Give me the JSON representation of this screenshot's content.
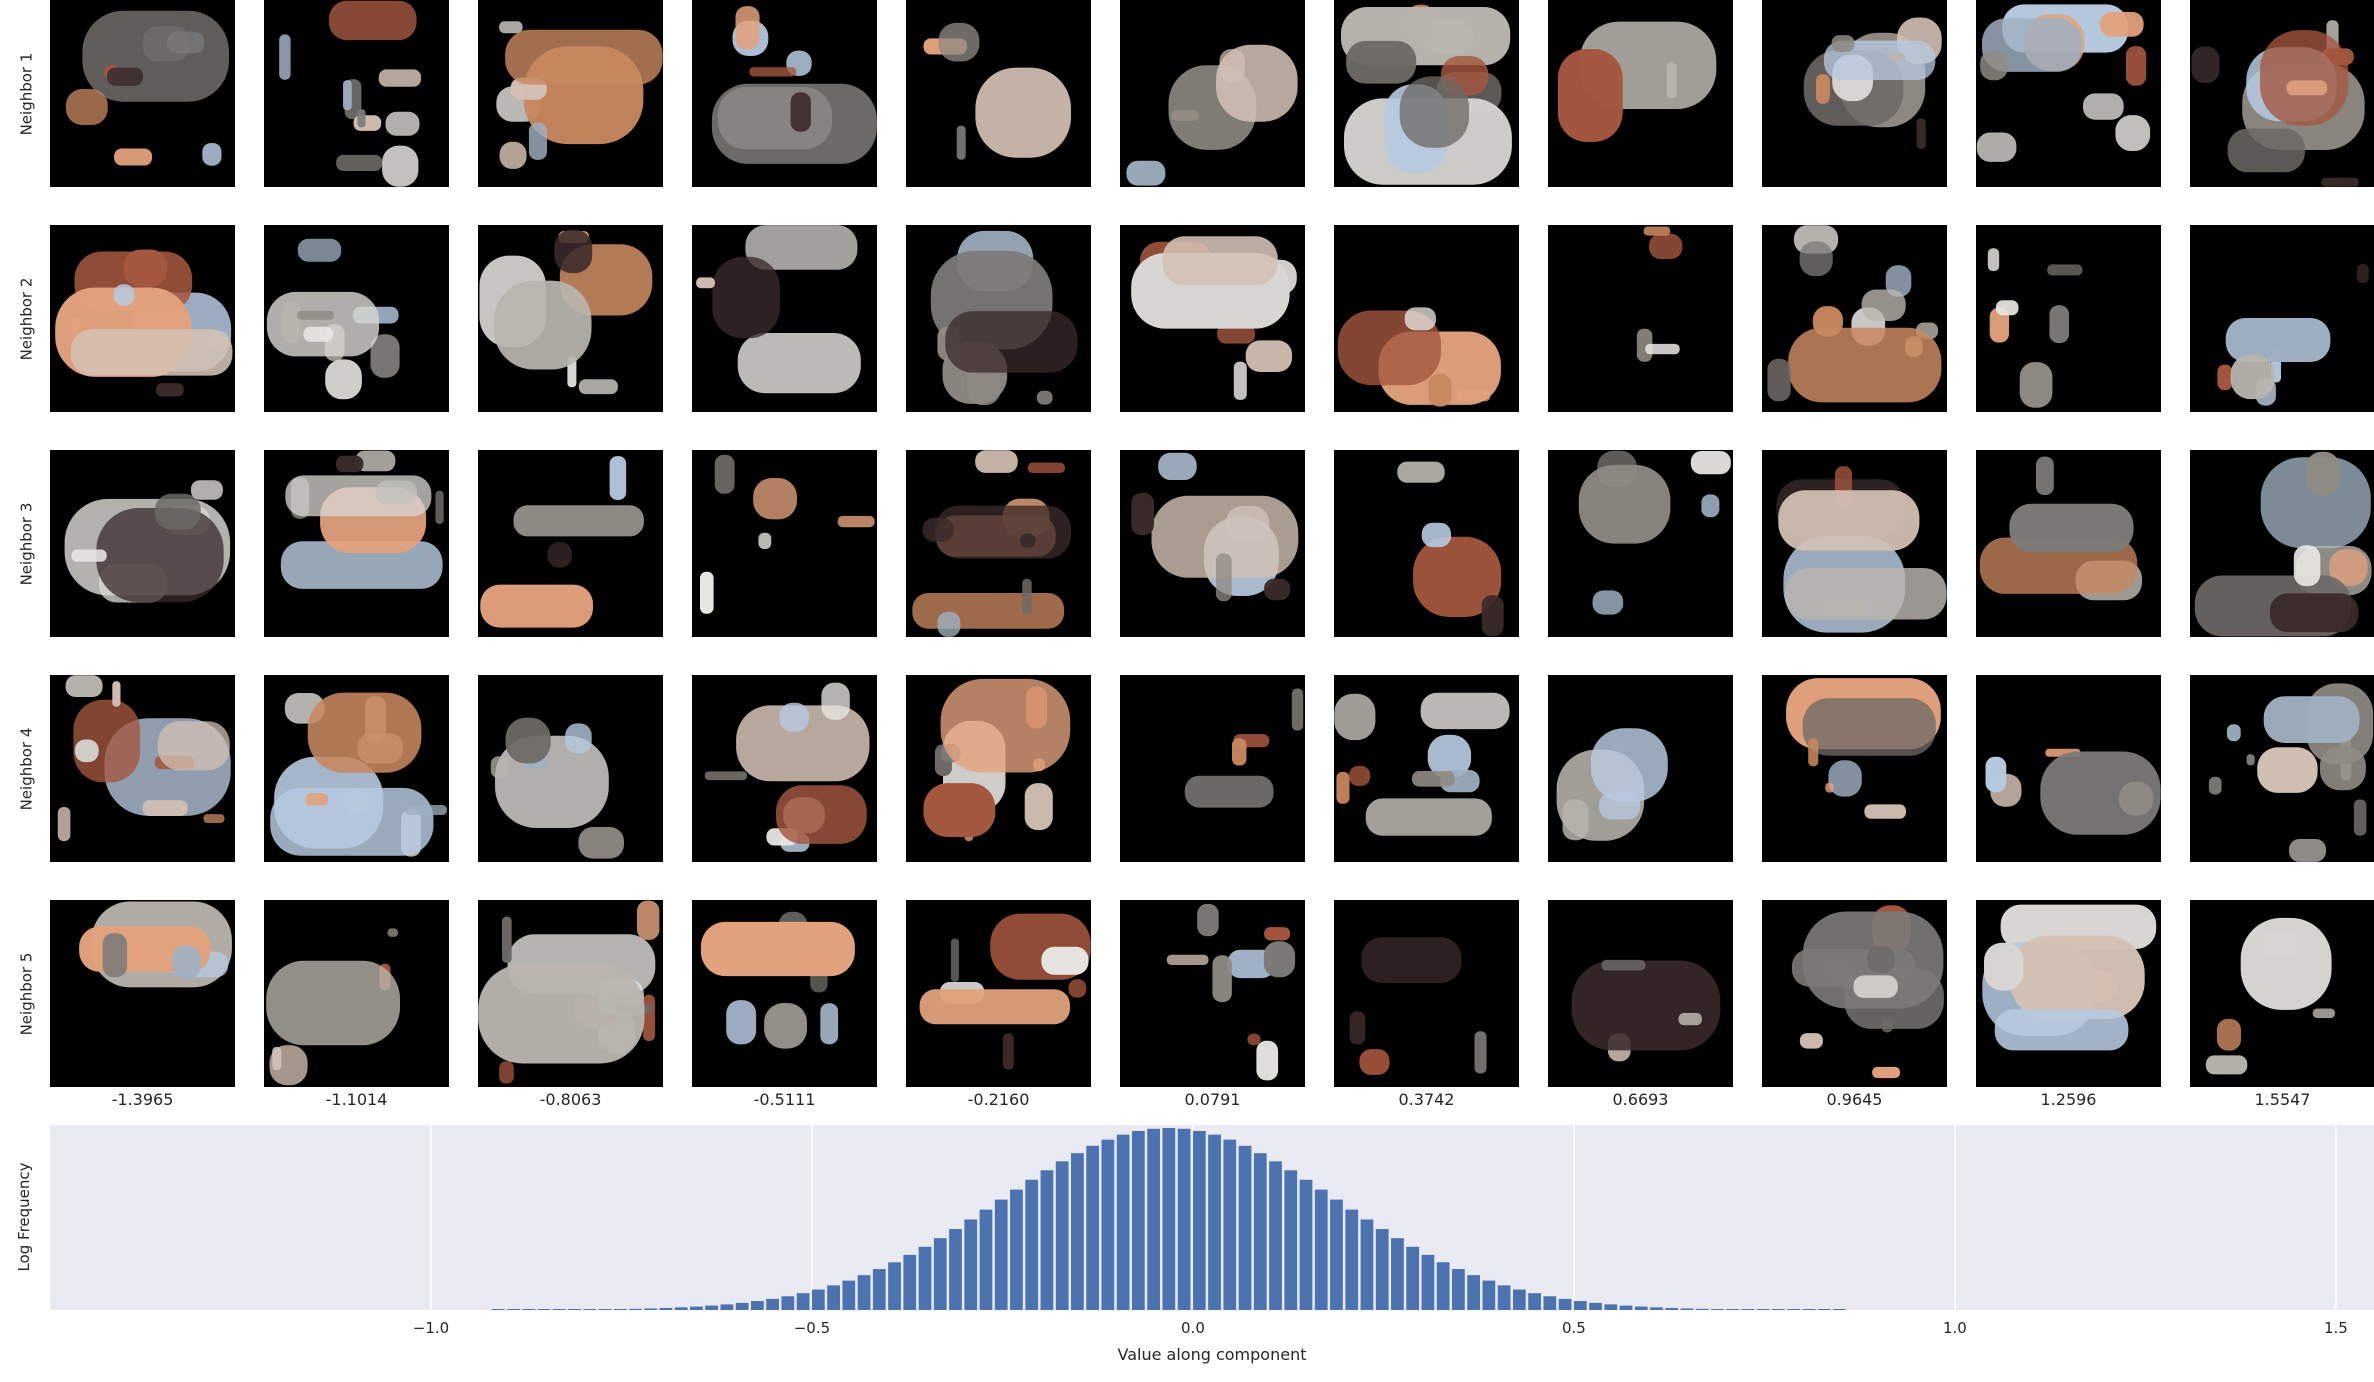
{
  "colors": {
    "bar": "#4c72b0",
    "plot_bg": "#eaeaf2",
    "grid": "#ffffff",
    "tile_bg": "#000000"
  },
  "neighbor_rows": [
    "Neighbor 1",
    "Neighbor 2",
    "Neighbor 3",
    "Neighbor 4",
    "Neighbor 5"
  ],
  "column_values": [
    "-1.3965",
    "-1.1014",
    "-0.8063",
    "-0.5111",
    "-0.2160",
    "0.0791",
    "0.3742",
    "0.6693",
    "0.9645",
    "1.2596",
    "1.5547"
  ],
  "chart_data": {
    "type": "bar",
    "title": "",
    "xlabel": "Value along component",
    "ylabel": "Log Frequency",
    "xlim": [
      -1.5,
      1.55
    ],
    "xticks": [
      "−1.0",
      "−0.5",
      "0.0",
      "0.5",
      "1.0",
      "1.5"
    ],
    "xtick_values": [
      -1.0,
      -0.5,
      0.0,
      0.5,
      1.0,
      1.5
    ],
    "grid": true,
    "histogram": {
      "distribution": "approximately normal",
      "center": -0.03,
      "spread_sd": 0.22,
      "bin_width": 0.02,
      "range": [
        -0.92,
        0.86
      ]
    }
  }
}
